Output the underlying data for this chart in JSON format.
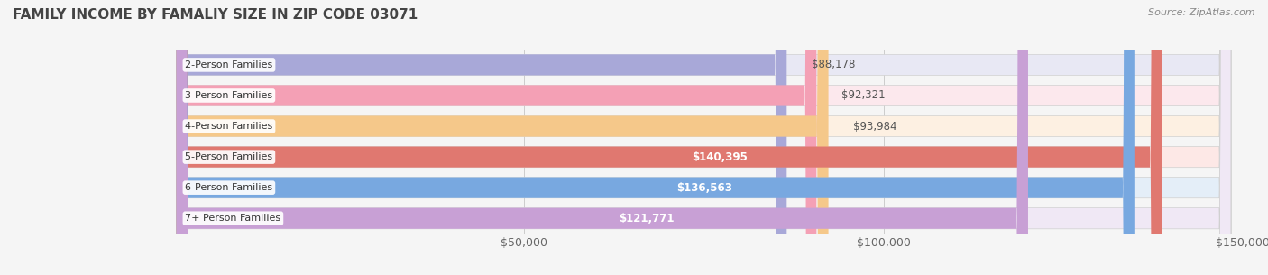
{
  "title": "FAMILY INCOME BY FAMALIY SIZE IN ZIP CODE 03071",
  "source": "Source: ZipAtlas.com",
  "categories": [
    "2-Person Families",
    "3-Person Families",
    "4-Person Families",
    "5-Person Families",
    "6-Person Families",
    "7+ Person Families"
  ],
  "values": [
    88178,
    92321,
    93984,
    140395,
    136563,
    121771
  ],
  "bar_colors": [
    "#a8a8d8",
    "#f4a0b5",
    "#f5c88a",
    "#e07870",
    "#78a8e0",
    "#c8a0d5"
  ],
  "bar_bg_colors": [
    "#e8e8f4",
    "#fce8ed",
    "#fdf0e2",
    "#fde8e6",
    "#e4eef8",
    "#f0e8f5"
  ],
  "xlim": [
    0,
    150000
  ],
  "xticks": [
    50000,
    100000,
    150000
  ],
  "xticklabels": [
    "$50,000",
    "$100,000",
    "$150,000"
  ],
  "value_labels": [
    "$88,178",
    "$92,321",
    "$93,984",
    "$140,395",
    "$136,563",
    "$121,771"
  ],
  "title_fontsize": 11,
  "tick_fontsize": 9,
  "bar_height": 0.68,
  "bar_gap": 0.32,
  "background_color": "#f5f5f5",
  "dot_colors": [
    "#9090c8",
    "#e888a0",
    "#e8a850",
    "#d05858",
    "#5090d0",
    "#b070c0"
  ]
}
